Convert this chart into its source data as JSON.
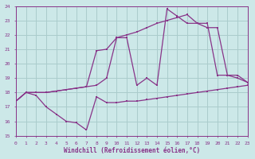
{
  "bg_color": "#cce8e8",
  "grid_color": "#aacccc",
  "line_color": "#883388",
  "xlabel": "Windchill (Refroidissement éolien,°C)",
  "ylim": [
    15,
    24
  ],
  "xlim": [
    0,
    23
  ],
  "yticks": [
    15,
    16,
    17,
    18,
    19,
    20,
    21,
    22,
    23,
    24
  ],
  "xticks": [
    0,
    1,
    2,
    3,
    4,
    5,
    6,
    7,
    8,
    9,
    10,
    11,
    12,
    13,
    14,
    15,
    16,
    17,
    18,
    19,
    20,
    21,
    22,
    23
  ],
  "line1_x": [
    0,
    1,
    2,
    3,
    4,
    5,
    6,
    7,
    8,
    9,
    10,
    11,
    12,
    13,
    14,
    15,
    16,
    17,
    18,
    19,
    20,
    21,
    22,
    23
  ],
  "line1_y": [
    17.4,
    18.0,
    17.8,
    17.0,
    16.5,
    16.0,
    15.9,
    15.4,
    17.7,
    17.3,
    17.3,
    17.4,
    17.4,
    17.5,
    17.6,
    17.7,
    17.8,
    17.9,
    18.0,
    18.1,
    18.2,
    18.3,
    18.4,
    18.5
  ],
  "line2_x": [
    0,
    1,
    2,
    3,
    4,
    5,
    6,
    7,
    8,
    9,
    10,
    11,
    12,
    13,
    14,
    15,
    16,
    17,
    18,
    19,
    20,
    21,
    22,
    23
  ],
  "line2_y": [
    17.4,
    18.0,
    18.0,
    18.0,
    18.1,
    18.2,
    18.3,
    18.4,
    20.9,
    21.0,
    21.8,
    22.0,
    22.2,
    22.5,
    22.8,
    23.0,
    23.2,
    23.4,
    22.8,
    22.5,
    22.5,
    19.2,
    19.2,
    18.7
  ],
  "line3_x": [
    0,
    1,
    2,
    3,
    4,
    5,
    6,
    7,
    8,
    9,
    10,
    11,
    12,
    13,
    14,
    15,
    16,
    17,
    18,
    19,
    20,
    21,
    22,
    23
  ],
  "line3_y": [
    17.4,
    18.0,
    18.0,
    18.0,
    18.1,
    18.2,
    18.3,
    18.4,
    18.5,
    19.0,
    21.8,
    21.8,
    18.5,
    19.0,
    18.5,
    23.8,
    23.3,
    22.8,
    22.8,
    22.8,
    19.2,
    19.2,
    19.0,
    18.7
  ]
}
